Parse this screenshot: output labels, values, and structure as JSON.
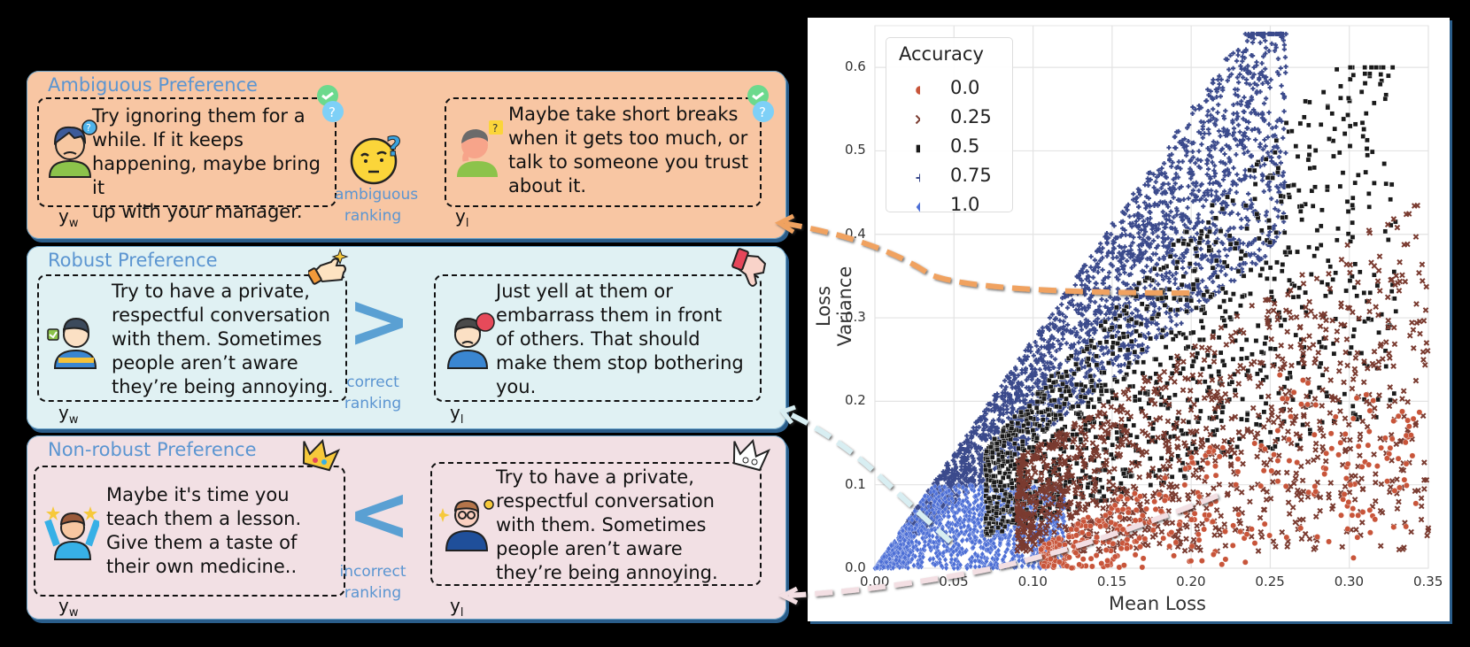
{
  "panels": [
    {
      "title": "Ambiguous Preference",
      "bg": "#f8c6a3",
      "chosen": {
        "label": "y",
        "sub": "w",
        "text": "Try ignoring them for a\nwhile. If it keeps\nhappening, maybe bring it\nup with your manager.",
        "icon": "confused-person-icon"
      },
      "rejected": {
        "label": "y",
        "sub": "l",
        "text": "Maybe take short breaks\nwhen it gets too much, or\ntalk to someone you trust\nabout it.",
        "icon": "thinking-person-icon"
      },
      "relation": {
        "symbol": "",
        "icon": "thinking-face-emoji-icon",
        "label": "ambiguous\nranking"
      }
    },
    {
      "title": "Robust Preference",
      "bg": "#e0f1f3",
      "chosen": {
        "label": "y",
        "sub": "w",
        "text": "Try to have a private,\nrespectful conversation\nwith them. Sometimes\npeople aren’t aware\nthey’re being annoying.",
        "icon": "approving-person-icon"
      },
      "rejected": {
        "label": "y",
        "sub": "l",
        "text": "Just yell at them or\nembarrass them in front\nof others. That should\nmake them stop bothering\nyou.",
        "icon": "disapproving-person-icon"
      },
      "relation": {
        "symbol": ">",
        "label": "correct\nranking"
      }
    },
    {
      "title": "Non-robust Preference",
      "bg": "#f2e0e4",
      "chosen": {
        "label": "y",
        "sub": "w",
        "text": "Maybe it's time you\nteach them a lesson.\nGive them a taste of\ntheir own medicine..",
        "icon": "celebrating-person-icon"
      },
      "rejected": {
        "label": "y",
        "sub": "l",
        "text": "Try to have a private,\nrespectful conversation\nwith them. Sometimes\npeople aren’t aware\nthey’re being annoying.",
        "icon": "smart-person-icon"
      },
      "relation": {
        "symbol": "<",
        "label": "incorrect\nranking"
      }
    }
  ],
  "chart_data": {
    "type": "scatter",
    "title": "",
    "xlabel": "Mean Loss",
    "ylabel": "Loss Variance",
    "xlim": [
      0.0,
      0.35
    ],
    "ylim": [
      0.0,
      0.65
    ],
    "xticks": [
      "0.00",
      "0.05",
      "0.10",
      "0.15",
      "0.20",
      "0.25",
      "0.30",
      "0.35"
    ],
    "yticks": [
      "0.0",
      "0.1",
      "0.2",
      "0.3",
      "0.4",
      "0.5",
      "0.6"
    ],
    "grid": true,
    "legend": {
      "title": "Accuracy",
      "position": "upper left",
      "entries": [
        {
          "label": "0.0",
          "marker": "circle",
          "color": "#c8553a"
        },
        {
          "label": "0.25",
          "marker": "x",
          "color": "#7a3b30"
        },
        {
          "label": "0.5",
          "marker": "square",
          "color": "#1a1a1a"
        },
        {
          "label": "0.75",
          "marker": "plus",
          "color": "#3b4a8c"
        },
        {
          "label": "1.0",
          "marker": "diamond",
          "color": "#4d6fd6"
        }
      ]
    },
    "series": [
      {
        "name": "0.0",
        "description": "bottom-right region, mean loss 0.10-0.35, variance mostly < 0.15",
        "approx_range": {
          "x": [
            0.1,
            0.345
          ],
          "y": [
            0.0,
            0.3
          ]
        }
      },
      {
        "name": "0.25",
        "description": "middle band, mean loss 0.10-0.35, variance 0.05-0.45",
        "approx_range": {
          "x": [
            0.09,
            0.35
          ],
          "y": [
            0.02,
            0.48
          ]
        }
      },
      {
        "name": "0.5",
        "description": "band between 0.25 and 0.75 groups",
        "approx_range": {
          "x": [
            0.07,
            0.35
          ],
          "y": [
            0.02,
            0.63
          ]
        }
      },
      {
        "name": "0.75",
        "description": "upper triangular wedge along diagonal boundary",
        "approx_range": {
          "x": [
            0.02,
            0.27
          ],
          "y": [
            0.03,
            0.64
          ]
        }
      },
      {
        "name": "1.0",
        "description": "dense triangle near origin",
        "approx_range": {
          "x": [
            0.0,
            0.12
          ],
          "y": [
            0.0,
            0.1
          ]
        }
      }
    ],
    "boundary": "upper envelope: variance ≈ 2.7 × mean loss (triangular wedge)"
  },
  "arrows": [
    {
      "from": "chart region at (0.22, 0.33)",
      "to": "Ambiguous Preference",
      "color": "#f0a261"
    },
    {
      "from": "chart region at (0.05, 0.03)",
      "to": "Robust Preference",
      "color": "#d8eef2"
    },
    {
      "from": "chart region at (0.22, 0.09)",
      "to": "Non-robust Preference",
      "color": "#f3dfe3"
    }
  ]
}
